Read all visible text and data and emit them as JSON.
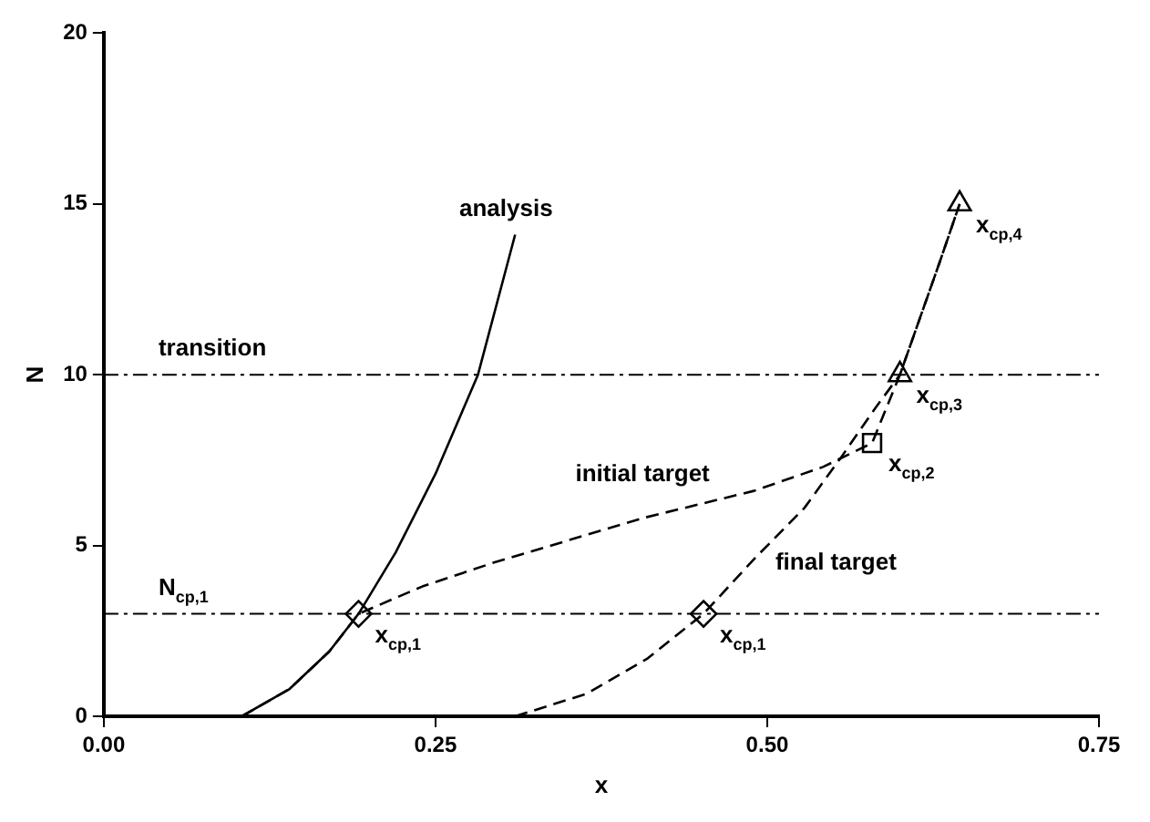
{
  "chart_data": {
    "type": "line",
    "xlabel": "x",
    "ylabel": "N",
    "xlim": [
      0,
      0.75
    ],
    "xticks": [
      {
        "value": 0,
        "label": "0.00"
      },
      {
        "value": 0.25,
        "label": "0.25"
      },
      {
        "value": 0.5,
        "label": "0.50"
      },
      {
        "value": 0.75,
        "label": "0.75"
      }
    ],
    "ylim": [
      0,
      20
    ],
    "yticks": [
      0,
      5,
      10,
      15,
      20
    ],
    "grid": false,
    "legend": false,
    "series": [
      {
        "name": "analysis",
        "color": "#000000",
        "line_style": "solid",
        "x": [
          0.104,
          0.14,
          0.17,
          0.192,
          0.22,
          0.25,
          0.282,
          0.31
        ],
        "values": [
          0,
          0.8,
          1.9,
          3,
          4.8,
          7.1,
          10,
          14.1
        ]
      },
      {
        "name": "initial target",
        "color": "#000000",
        "line_style": "dashed",
        "x": [
          0.104,
          0.14,
          0.17,
          0.192,
          0.24,
          0.294,
          0.35,
          0.406,
          0.49,
          0.542,
          0.579,
          0.6,
          0.63,
          0.645
        ],
        "values": [
          0,
          0.8,
          1.9,
          3,
          3.8,
          4.5,
          5.15,
          5.8,
          6.6,
          7.3,
          8,
          10,
          13.3,
          15
        ]
      },
      {
        "name": "final target",
        "color": "#000000",
        "line_style": "dashed",
        "x": [
          0.31,
          0.364,
          0.41,
          0.452,
          0.49,
          0.528,
          0.556,
          0.581,
          0.6,
          0.63,
          0.645
        ],
        "values": [
          0,
          0.66,
          1.7,
          3,
          4.6,
          6.1,
          7.6,
          9,
          10,
          13.3,
          15
        ]
      },
      {
        "type": "scatter",
        "color": "#000000",
        "marker": "diamond",
        "x": [
          0.192,
          0.452
        ],
        "values": [
          3,
          3
        ]
      },
      {
        "type": "scatter",
        "color": "#000000",
        "marker": "square",
        "x": [
          0.579
        ],
        "values": [
          8
        ]
      },
      {
        "type": "scatter",
        "color": "#000000",
        "marker": "triangle",
        "x": [
          0.6,
          0.645
        ],
        "values": [
          10,
          15
        ]
      }
    ],
    "ref_lines": [
      {
        "axis": "y",
        "value": 10,
        "label": "transition",
        "line_style": "dashed"
      },
      {
        "axis": "y",
        "value": 3,
        "label": "N$_{cp,1}$",
        "line_style": "dashed"
      }
    ],
    "annotations": [
      {
        "text": "x$_{cp,1}$",
        "x": 0.192,
        "y": 3
      },
      {
        "text": "x$_{cp,1}$",
        "x": 0.452,
        "y": 3
      },
      {
        "text": "x$_{cp,2}$",
        "x": 0.579,
        "y": 8
      },
      {
        "text": "x$_{cp,3}$",
        "x": 0.6,
        "y": 10
      },
      {
        "text": "x$_{cp,4}$",
        "x": 0.645,
        "y": 15
      }
    ]
  }
}
